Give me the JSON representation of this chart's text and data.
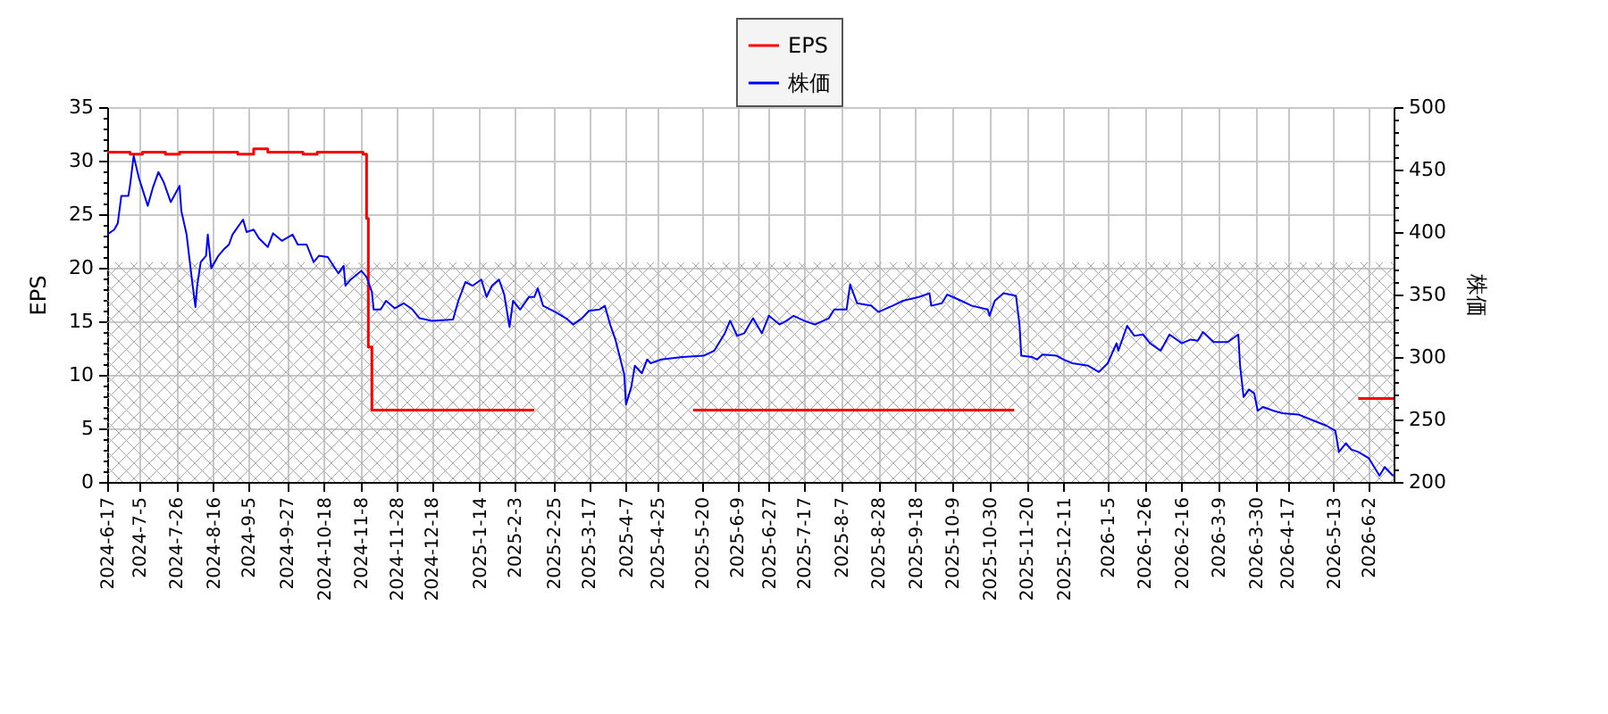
{
  "chart_data": {
    "type": "line",
    "ylabel": "EPS",
    "y2label": "株価",
    "grid": true,
    "legend": "top",
    "xlim": [
      "2024-06-17",
      "2026-06-16"
    ],
    "xticks": [
      {
        "value": "2024-06-17",
        "label": "2024-6-17"
      },
      {
        "value": "2024-07-05",
        "label": "2024-7-5"
      },
      {
        "value": "2024-07-26",
        "label": "2024-7-26"
      },
      {
        "value": "2024-08-16",
        "label": "2024-8-16"
      },
      {
        "value": "2024-09-05",
        "label": "2024-9-5"
      },
      {
        "value": "2024-09-27",
        "label": "2024-9-27"
      },
      {
        "value": "2024-10-18",
        "label": "2024-10-18"
      },
      {
        "value": "2024-11-08",
        "label": "2024-11-8"
      },
      {
        "value": "2024-11-28",
        "label": "2024-11-28"
      },
      {
        "value": "2024-12-18",
        "label": "2024-12-18"
      },
      {
        "value": "2025-01-14",
        "label": "2025-1-14"
      },
      {
        "value": "2025-02-03",
        "label": "2025-2-3"
      },
      {
        "value": "2025-02-25",
        "label": "2025-2-25"
      },
      {
        "value": "2025-03-17",
        "label": "2025-3-17"
      },
      {
        "value": "2025-04-07",
        "label": "2025-4-7"
      },
      {
        "value": "2025-04-25",
        "label": "2025-4-25"
      },
      {
        "value": "2025-05-20",
        "label": "2025-5-20"
      },
      {
        "value": "2025-06-09",
        "label": "2025-6-9"
      },
      {
        "value": "2025-06-27",
        "label": "2025-6-27"
      },
      {
        "value": "2025-07-17",
        "label": "2025-7-17"
      },
      {
        "value": "2025-08-07",
        "label": "2025-8-7"
      },
      {
        "value": "2025-08-28",
        "label": "2025-8-28"
      },
      {
        "value": "2025-09-18",
        "label": "2025-9-18"
      },
      {
        "value": "2025-10-09",
        "label": "2025-10-9"
      },
      {
        "value": "2025-10-30",
        "label": "2025-10-30"
      },
      {
        "value": "2025-11-20",
        "label": "2025-11-20"
      },
      {
        "value": "2025-12-11",
        "label": "2025-12-11"
      },
      {
        "value": "2026-01-05",
        "label": "2026-1-5"
      },
      {
        "value": "2026-01-26",
        "label": "2026-1-26"
      },
      {
        "value": "2026-02-16",
        "label": "2026-2-16"
      },
      {
        "value": "2026-03-09",
        "label": "2026-3-9"
      },
      {
        "value": "2026-03-30",
        "label": "2026-3-30"
      },
      {
        "value": "2026-04-17",
        "label": "2026-4-17"
      },
      {
        "value": "2026-05-13",
        "label": "2026-5-13"
      },
      {
        "value": "2026-06-02",
        "label": "2026-6-2"
      }
    ],
    "ylim": [
      0,
      35
    ],
    "yticks": [
      0,
      {
        "value": 1,
        "label": null
      },
      {
        "value": 2,
        "label": null
      },
      {
        "value": 3,
        "label": null
      },
      {
        "value": 4,
        "label": null
      },
      5,
      {
        "value": 6,
        "label": null
      },
      {
        "value": 7,
        "label": null
      },
      {
        "value": 8,
        "label": null
      },
      {
        "value": 9,
        "label": null
      },
      10,
      {
        "value": 11,
        "label": null
      },
      {
        "value": 12,
        "label": null
      },
      {
        "value": 13,
        "label": null
      },
      {
        "value": 14,
        "label": null
      },
      15,
      {
        "value": 16,
        "label": null
      },
      {
        "value": 17,
        "label": null
      },
      {
        "value": 18,
        "label": null
      },
      {
        "value": 19,
        "label": null
      },
      20,
      {
        "value": 21,
        "label": null
      },
      {
        "value": 22,
        "label": null
      },
      {
        "value": 23,
        "label": null
      },
      {
        "value": 24,
        "label": null
      },
      25,
      {
        "value": 26,
        "label": null
      },
      {
        "value": 27,
        "label": null
      },
      {
        "value": 28,
        "label": null
      },
      {
        "value": 29,
        "label": null
      },
      30,
      {
        "value": 31,
        "label": null
      },
      {
        "value": 32,
        "label": null
      },
      {
        "value": 33,
        "label": null
      },
      {
        "value": 34,
        "label": null
      },
      35
    ],
    "y2lim": [
      200,
      500
    ],
    "y2ticks": [
      200,
      {
        "value": 210,
        "label": null
      },
      {
        "value": 220,
        "label": null
      },
      {
        "value": 230,
        "label": null
      },
      {
        "value": 240,
        "label": null
      },
      250,
      {
        "value": 260,
        "label": null
      },
      {
        "value": 270,
        "label": null
      },
      {
        "value": 280,
        "label": null
      },
      {
        "value": 290,
        "label": null
      },
      300,
      {
        "value": 310,
        "label": null
      },
      {
        "value": 320,
        "label": null
      },
      {
        "value": 330,
        "label": null
      },
      {
        "value": 340,
        "label": null
      },
      350,
      {
        "value": 360,
        "label": null
      },
      {
        "value": 370,
        "label": null
      },
      {
        "value": 380,
        "label": null
      },
      {
        "value": 390,
        "label": null
      },
      400,
      {
        "value": 410,
        "label": null
      },
      {
        "value": 420,
        "label": null
      },
      {
        "value": 430,
        "label": null
      },
      {
        "value": 440,
        "label": null
      },
      450,
      {
        "value": 460,
        "label": null
      },
      {
        "value": 470,
        "label": null
      },
      {
        "value": 480,
        "label": null
      },
      {
        "value": 490,
        "label": null
      },
      500
    ],
    "bands": [
      {
        "axis": "y",
        "from": 0,
        "to": 20.5,
        "color": "#a9a9a9"
      }
    ],
    "series": [
      {
        "name": "EPS",
        "type": "step",
        "color": "#ff0000",
        "x": [
          "2024-06-17",
          "2024-06-30",
          "2024-07-07",
          "2024-07-20",
          "2024-07-28",
          "2024-08-30",
          "2024-09-08",
          "2024-09-16",
          "2024-10-06",
          "2024-10-14",
          "2024-11-09",
          "2024-11-11",
          "2024-11-12",
          "2024-11-14",
          "2025-02-14",
          "2025-02-16",
          "2025-05-15",
          "2025-11-13",
          "2025-11-14",
          "2026-05-27",
          "2026-06-16"
        ],
        "values": [
          30.8,
          30.6,
          30.8,
          30.6,
          30.8,
          30.6,
          31.1,
          30.8,
          30.6,
          30.8,
          30.6,
          24.6,
          12.6,
          6.7,
          6.7,
          null,
          6.7,
          6.7,
          null,
          7.8,
          7.8
        ]
      },
      {
        "name": "株価",
        "axis": "y2",
        "color": "#0000ff",
        "x": [
          "2024-06-17",
          "2024-06-21",
          "2024-06-23",
          "2024-06-25",
          "2024-06-29",
          "2024-06-30",
          "2024-07-02",
          "2024-07-05",
          "2024-07-10",
          "2024-07-13",
          "2024-07-16",
          "2024-07-19",
          "2024-07-23",
          "2024-07-28",
          "2024-07-29",
          "2024-08-01",
          "2024-08-04",
          "2024-08-06",
          "2024-08-07",
          "2024-08-09",
          "2024-08-12",
          "2024-08-13",
          "2024-08-15",
          "2024-08-19",
          "2024-08-22",
          "2024-08-25",
          "2024-08-27",
          "2024-09-02",
          "2024-09-04",
          "2024-09-08",
          "2024-09-11",
          "2024-09-16",
          "2024-09-19",
          "2024-09-24",
          "2024-09-30",
          "2024-10-03",
          "2024-10-08",
          "2024-10-12",
          "2024-10-15",
          "2024-10-20",
          "2024-10-26",
          "2024-10-29",
          "2024-10-30",
          "2024-11-02",
          "2024-11-08",
          "2024-11-11",
          "2024-11-14",
          "2024-11-15",
          "2024-11-19",
          "2024-11-22",
          "2024-11-27",
          "2024-12-02",
          "2024-12-07",
          "2024-12-11",
          "2024-12-18",
          "2024-12-30",
          "2025-01-02",
          "2025-01-06",
          "2025-01-10",
          "2025-01-15",
          "2025-01-18",
          "2025-01-21",
          "2025-01-25",
          "2025-01-28",
          "2025-01-31",
          "2025-02-02",
          "2025-02-06",
          "2025-02-11",
          "2025-02-14",
          "2025-02-16",
          "2025-02-19",
          "2025-02-26",
          "2025-03-04",
          "2025-03-08",
          "2025-03-13",
          "2025-03-17",
          "2025-03-23",
          "2025-03-26",
          "2025-03-29",
          "2025-04-01",
          "2025-04-06",
          "2025-04-07",
          "2025-04-10",
          "2025-04-12",
          "2025-04-16",
          "2025-04-19",
          "2025-04-21",
          "2025-04-27",
          "2025-05-09",
          "2025-05-21",
          "2025-05-27",
          "2025-06-02",
          "2025-06-05",
          "2025-06-09",
          "2025-06-13",
          "2025-06-18",
          "2025-06-23",
          "2025-06-27",
          "2025-07-03",
          "2025-07-07",
          "2025-07-11",
          "2025-07-17",
          "2025-07-23",
          "2025-07-31",
          "2025-08-03",
          "2025-08-10",
          "2025-08-12",
          "2025-08-16",
          "2025-08-24",
          "2025-08-28",
          "2025-09-05",
          "2025-09-11",
          "2025-09-20",
          "2025-09-26",
          "2025-09-27",
          "2025-10-03",
          "2025-10-06",
          "2025-10-14",
          "2025-10-20",
          "2025-10-29",
          "2025-10-30",
          "2025-11-02",
          "2025-11-07",
          "2025-11-14",
          "2025-11-16",
          "2025-11-17",
          "2025-11-23",
          "2025-11-26",
          "2025-11-29",
          "2025-12-07",
          "2025-12-11",
          "2025-12-16",
          "2025-12-25",
          "2025-12-31",
          "2026-01-05",
          "2026-01-10",
          "2026-01-11",
          "2026-01-16",
          "2026-01-20",
          "2026-01-25",
          "2026-01-29",
          "2026-02-04",
          "2026-02-09",
          "2026-02-16",
          "2026-02-21",
          "2026-02-25",
          "2026-02-28",
          "2026-03-06",
          "2026-03-14",
          "2026-03-20",
          "2026-03-21",
          "2026-03-23",
          "2026-03-26",
          "2026-03-29",
          "2026-03-31",
          "2026-04-03",
          "2026-04-09",
          "2026-04-14",
          "2026-04-23",
          "2026-04-30",
          "2026-05-09",
          "2026-05-14",
          "2026-05-16",
          "2026-05-20",
          "2026-05-23",
          "2026-05-27",
          "2026-06-02",
          "2026-06-05",
          "2026-06-08",
          "2026-06-11",
          "2026-06-15",
          "2026-06-16"
        ],
        "values": [
          398,
          402,
          407,
          429,
          429,
          438,
          461,
          443,
          421,
          436,
          448,
          440,
          424,
          437,
          417,
          398,
          362,
          340,
          357,
          376,
          381,
          398,
          371,
          381,
          386,
          390,
          398,
          410,
          400,
          402,
          395,
          388,
          399,
          393,
          398,
          390,
          390,
          376,
          381,
          380,
          367,
          373,
          357,
          362,
          369,
          364,
          352,
          338,
          338,
          345,
          339,
          343,
          338,
          331,
          329,
          330,
          345,
          360,
          357,
          362,
          348,
          357,
          362,
          350,
          324,
          345,
          338,
          348,
          348,
          355,
          341,
          336,
          331,
          326,
          331,
          337,
          338,
          341,
          326,
          314,
          286,
          262,
          276,
          293,
          287,
          298,
          295,
          298,
          300,
          301,
          305,
          319,
          329,
          317,
          319,
          331,
          319,
          333,
          326,
          329,
          333,
          329,
          326,
          331,
          338,
          338,
          358,
          343,
          341,
          336,
          341,
          345,
          348,
          351,
          341,
          343,
          350,
          345,
          341,
          338,
          333,
          345,
          351,
          349,
          326,
          301,
          300,
          298,
          302,
          301,
          298,
          295,
          293,
          288,
          295,
          311,
          305,
          325,
          317,
          318,
          311,
          305,
          318,
          311,
          314,
          313,
          320,
          312,
          312,
          318,
          293,
          268,
          274,
          271,
          257,
          260,
          257,
          255,
          254,
          250,
          245,
          241,
          224,
          231,
          226,
          224,
          219,
          212,
          205,
          212,
          206,
          205
        ]
      }
    ]
  }
}
